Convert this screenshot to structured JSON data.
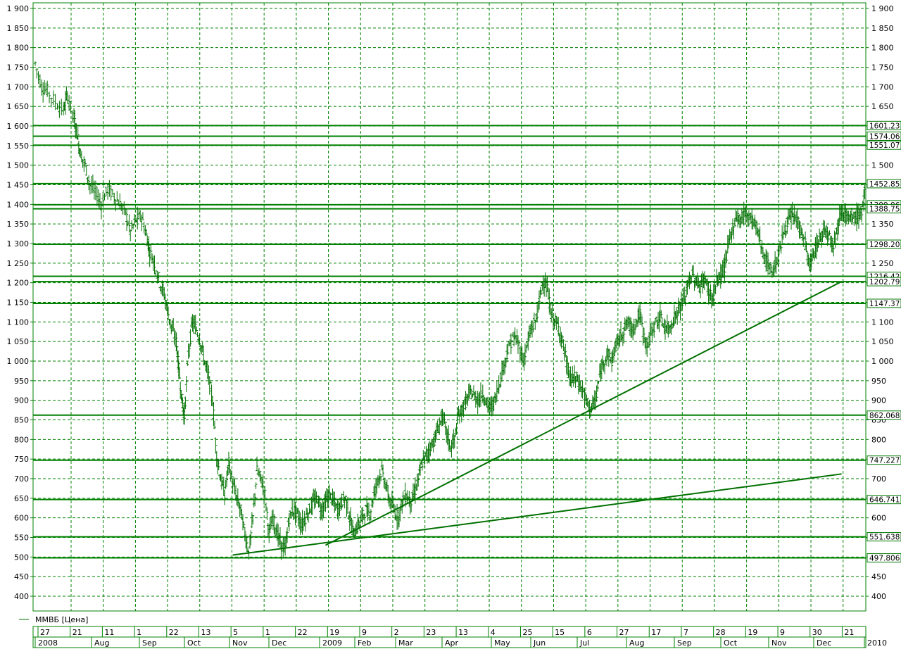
{
  "chart_data": {
    "type": "candlestick",
    "series_name": "ММВБ [Цена]",
    "colors": {
      "series": "#007000",
      "grid": "#008000",
      "level": "#008000",
      "level_label_bg": "#007800"
    },
    "ylim": [
      360,
      1910
    ],
    "y_ticks": [
      "1 900",
      "1 850",
      "1 800",
      "1 750",
      "1 700",
      "1 650",
      "1 600",
      "1 550",
      "1 500",
      "1 450",
      "1 400",
      "1 350",
      "1 300",
      "1 250",
      "1 200",
      "1 150",
      "1 100",
      "1 050",
      "1 000",
      "950",
      "900",
      "850",
      "800",
      "750",
      "700",
      "650",
      "600",
      "550",
      "500",
      "450",
      "400"
    ],
    "y_tick_values": [
      1900,
      1850,
      1800,
      1750,
      1700,
      1650,
      1600,
      1550,
      1500,
      1450,
      1400,
      1350,
      1300,
      1250,
      1200,
      1150,
      1100,
      1050,
      1000,
      950,
      900,
      850,
      800,
      750,
      700,
      650,
      600,
      550,
      500,
      450,
      400
    ],
    "levels": [
      {
        "value": 1601.23,
        "label": "1601.23"
      },
      {
        "value": 1574.06,
        "label": "1574.06"
      },
      {
        "value": 1551.07,
        "label": "1551.07"
      },
      {
        "value": 1452.85,
        "label": "1452.85"
      },
      {
        "value": 1399.06,
        "label": "1399.06"
      },
      {
        "value": 1388.75,
        "label": "1388.75"
      },
      {
        "value": 1298.2,
        "label": "1298.20"
      },
      {
        "value": 1216.42,
        "label": "1216.42"
      },
      {
        "value": 1202.79,
        "label": "1202.79"
      },
      {
        "value": 1147.37,
        "label": "1147.37"
      },
      {
        "value": 862.068,
        "label": "862.068"
      },
      {
        "value": 747.227,
        "label": "747.227"
      },
      {
        "value": 646.741,
        "label": "646.741"
      },
      {
        "value": 551.638,
        "label": "551.638"
      },
      {
        "value": 497.806,
        "label": "497.806"
      }
    ],
    "trendlines": [
      {
        "from": [
          0.245,
          505
        ],
        "to": [
          1.0,
          712
        ]
      },
      {
        "from": [
          0.36,
          530
        ],
        "to": [
          1.0,
          1203
        ]
      }
    ],
    "x_day_labels": [
      "27",
      "21",
      "11",
      "1",
      "22",
      "13",
      "5",
      "1",
      "22",
      "19",
      "9",
      "2",
      "23",
      "13",
      "4",
      "25",
      "15",
      "6",
      "27",
      "17",
      "7",
      "28",
      "19",
      "9",
      "30",
      "21"
    ],
    "x_month_labels": [
      "2008",
      "Aug",
      "Sep",
      "Oct",
      "Nov",
      "Dec",
      "2009",
      "Feb",
      "Mar",
      "Apr",
      "May",
      "Jun",
      "Jul",
      "Aug",
      "Sep",
      "Oct",
      "Nov",
      "Dec",
      "2010"
    ],
    "price_path": [
      [
        0.0,
        1760
      ],
      [
        0.008,
        1700
      ],
      [
        0.015,
        1690
      ],
      [
        0.025,
        1660
      ],
      [
        0.035,
        1640
      ],
      [
        0.04,
        1680
      ],
      [
        0.048,
        1620
      ],
      [
        0.052,
        1580
      ],
      [
        0.056,
        1530
      ],
      [
        0.062,
        1500
      ],
      [
        0.068,
        1450
      ],
      [
        0.075,
        1430
      ],
      [
        0.082,
        1400
      ],
      [
        0.09,
        1440
      ],
      [
        0.098,
        1420
      ],
      [
        0.105,
        1400
      ],
      [
        0.112,
        1380
      ],
      [
        0.118,
        1330
      ],
      [
        0.125,
        1360
      ],
      [
        0.132,
        1370
      ],
      [
        0.138,
        1320
      ],
      [
        0.142,
        1280
      ],
      [
        0.148,
        1250
      ],
      [
        0.155,
        1200
      ],
      [
        0.16,
        1170
      ],
      [
        0.165,
        1120
      ],
      [
        0.17,
        1080
      ],
      [
        0.175,
        1050
      ],
      [
        0.178,
        980
      ],
      [
        0.182,
        900
      ],
      [
        0.185,
        860
      ],
      [
        0.19,
        1020
      ],
      [
        0.195,
        1100
      ],
      [
        0.2,
        1080
      ],
      [
        0.205,
        1050
      ],
      [
        0.21,
        1000
      ],
      [
        0.215,
        960
      ],
      [
        0.22,
        900
      ],
      [
        0.225,
        760
      ],
      [
        0.23,
        700
      ],
      [
        0.235,
        660
      ],
      [
        0.24,
        740
      ],
      [
        0.245,
        690
      ],
      [
        0.25,
        650
      ],
      [
        0.255,
        620
      ],
      [
        0.26,
        560
      ],
      [
        0.265,
        510
      ],
      [
        0.27,
        600
      ],
      [
        0.275,
        720
      ],
      [
        0.28,
        700
      ],
      [
        0.285,
        660
      ],
      [
        0.29,
        560
      ],
      [
        0.295,
        600
      ],
      [
        0.3,
        560
      ],
      [
        0.305,
        530
      ],
      [
        0.31,
        520
      ],
      [
        0.315,
        600
      ],
      [
        0.32,
        620
      ],
      [
        0.325,
        610
      ],
      [
        0.33,
        580
      ],
      [
        0.335,
        600
      ],
      [
        0.34,
        620
      ],
      [
        0.345,
        640
      ],
      [
        0.35,
        650
      ],
      [
        0.355,
        620
      ],
      [
        0.36,
        640
      ],
      [
        0.365,
        660
      ],
      [
        0.37,
        640
      ],
      [
        0.375,
        620
      ],
      [
        0.38,
        640
      ],
      [
        0.385,
        650
      ],
      [
        0.39,
        600
      ],
      [
        0.395,
        560
      ],
      [
        0.4,
        580
      ],
      [
        0.405,
        600
      ],
      [
        0.41,
        620
      ],
      [
        0.415,
        610
      ],
      [
        0.42,
        660
      ],
      [
        0.425,
        700
      ],
      [
        0.43,
        720
      ],
      [
        0.435,
        680
      ],
      [
        0.44,
        640
      ],
      [
        0.445,
        620
      ],
      [
        0.45,
        600
      ],
      [
        0.455,
        640
      ],
      [
        0.46,
        660
      ],
      [
        0.465,
        640
      ],
      [
        0.47,
        660
      ],
      [
        0.475,
        700
      ],
      [
        0.48,
        740
      ],
      [
        0.485,
        760
      ],
      [
        0.49,
        780
      ],
      [
        0.495,
        800
      ],
      [
        0.5,
        830
      ],
      [
        0.505,
        860
      ],
      [
        0.51,
        820
      ],
      [
        0.515,
        780
      ],
      [
        0.52,
        800
      ],
      [
        0.525,
        860
      ],
      [
        0.53,
        880
      ],
      [
        0.535,
        900
      ],
      [
        0.54,
        920
      ],
      [
        0.545,
        910
      ],
      [
        0.55,
        900
      ],
      [
        0.555,
        920
      ],
      [
        0.56,
        890
      ],
      [
        0.565,
        880
      ],
      [
        0.57,
        900
      ],
      [
        0.575,
        940
      ],
      [
        0.58,
        980
      ],
      [
        0.585,
        1020
      ],
      [
        0.59,
        1050
      ],
      [
        0.595,
        1060
      ],
      [
        0.6,
        1040
      ],
      [
        0.605,
        1000
      ],
      [
        0.61,
        1040
      ],
      [
        0.615,
        1080
      ],
      [
        0.62,
        1100
      ],
      [
        0.625,
        1150
      ],
      [
        0.63,
        1210
      ],
      [
        0.635,
        1180
      ],
      [
        0.64,
        1120
      ],
      [
        0.645,
        1100
      ],
      [
        0.65,
        1080
      ],
      [
        0.655,
        1040
      ],
      [
        0.66,
        980
      ],
      [
        0.665,
        950
      ],
      [
        0.67,
        960
      ],
      [
        0.675,
        940
      ],
      [
        0.68,
        920
      ],
      [
        0.685,
        890
      ],
      [
        0.69,
        880
      ],
      [
        0.695,
        900
      ],
      [
        0.7,
        960
      ],
      [
        0.705,
        1000
      ],
      [
        0.71,
        1020
      ],
      [
        0.715,
        1000
      ],
      [
        0.72,
        1040
      ],
      [
        0.725,
        1060
      ],
      [
        0.73,
        1080
      ],
      [
        0.735,
        1100
      ],
      [
        0.74,
        1080
      ],
      [
        0.745,
        1100
      ],
      [
        0.75,
        1120
      ],
      [
        0.755,
        1060
      ],
      [
        0.76,
        1040
      ],
      [
        0.765,
        1080
      ],
      [
        0.77,
        1100
      ],
      [
        0.775,
        1110
      ],
      [
        0.78,
        1090
      ],
      [
        0.785,
        1080
      ],
      [
        0.79,
        1100
      ],
      [
        0.795,
        1120
      ],
      [
        0.8,
        1140
      ],
      [
        0.805,
        1160
      ],
      [
        0.81,
        1200
      ],
      [
        0.815,
        1220
      ],
      [
        0.82,
        1200
      ],
      [
        0.825,
        1190
      ],
      [
        0.83,
        1210
      ],
      [
        0.835,
        1180
      ],
      [
        0.84,
        1160
      ],
      [
        0.845,
        1200
      ],
      [
        0.85,
        1220
      ],
      [
        0.855,
        1240
      ],
      [
        0.86,
        1300
      ],
      [
        0.865,
        1340
      ],
      [
        0.87,
        1370
      ],
      [
        0.875,
        1360
      ],
      [
        0.88,
        1380
      ],
      [
        0.885,
        1370
      ],
      [
        0.89,
        1360
      ],
      [
        0.895,
        1340
      ],
      [
        0.9,
        1300
      ],
      [
        0.905,
        1260
      ],
      [
        0.91,
        1240
      ],
      [
        0.915,
        1230
      ],
      [
        0.92,
        1260
      ],
      [
        0.925,
        1300
      ],
      [
        0.93,
        1340
      ],
      [
        0.935,
        1360
      ],
      [
        0.94,
        1370
      ],
      [
        0.945,
        1360
      ],
      [
        0.95,
        1330
      ],
      [
        0.955,
        1300
      ],
      [
        0.96,
        1240
      ],
      [
        0.965,
        1270
      ],
      [
        0.97,
        1300
      ],
      [
        0.975,
        1320
      ],
      [
        0.98,
        1340
      ],
      [
        0.985,
        1320
      ],
      [
        0.99,
        1300
      ],
      [
        0.995,
        1340
      ],
      [
        1.0,
        1390
      ],
      [
        1.005,
        1370
      ],
      [
        1.01,
        1360
      ],
      [
        1.015,
        1365
      ],
      [
        1.02,
        1370
      ],
      [
        1.025,
        1380
      ],
      [
        1.03,
        1450
      ]
    ]
  }
}
